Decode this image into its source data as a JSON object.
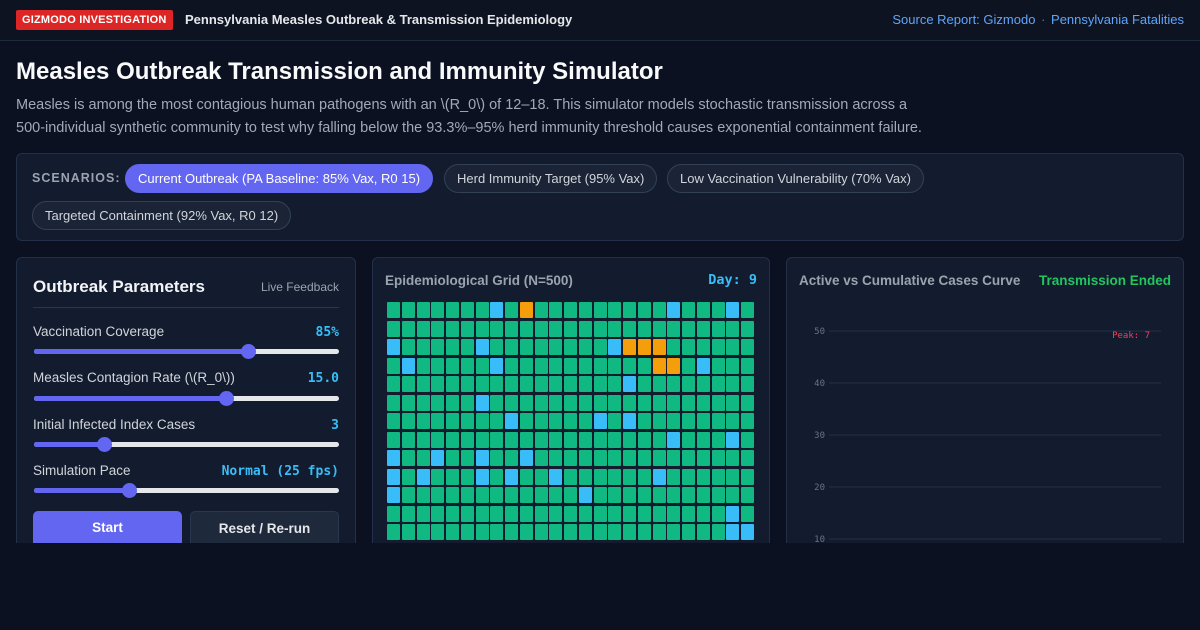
{
  "topbar": {
    "badge": "GIZMODO INVESTIGATION",
    "title": "Pennsylvania Measles Outbreak & Transmission Epidemiology",
    "link_source": "Source Report: Gizmodo",
    "link_sep": "·",
    "link_fatalities": "Pennsylvania Fatalities"
  },
  "page": {
    "title": "Measles Outbreak Transmission and Immunity Simulator",
    "description": "Measles is among the most contagious human pathogens with an \\(R_0\\) of 12–18. This simulator models stochastic transmission across a 500-individual synthetic community to test why falling below the 93.3%–95% herd immunity threshold causes exponential containment failure."
  },
  "scenarios": {
    "label": "SCENARIOS:",
    "items": [
      {
        "label": "Current Outbreak (PA Baseline: 85% Vax, R0 15)",
        "active": true
      },
      {
        "label": "Herd Immunity Target (95% Vax)",
        "active": false
      },
      {
        "label": "Low Vaccination Vulnerability (70% Vax)",
        "active": false
      },
      {
        "label": "Targeted Containment (92% Vax, R0 12)",
        "active": false
      }
    ]
  },
  "params": {
    "title": "Outbreak Parameters",
    "live": "Live Feedback",
    "controls": [
      {
        "label": "Vaccination Coverage",
        "value": "85%",
        "fraction": 0.7
      },
      {
        "label": "Measles Contagion Rate (\\(R_0\\))",
        "value": "15.0",
        "fraction": 0.63
      },
      {
        "label": "Initial Infected Index Cases",
        "value": "3",
        "fraction": 0.23
      },
      {
        "label": "Simulation Pace",
        "value": "Normal (25 fps)",
        "fraction": 0.31
      }
    ],
    "start_label": "Start",
    "reset_label": "Reset / Re-run"
  },
  "grid_panel": {
    "title": "Epidemiological Grid (N=500)",
    "day": "Day: 9",
    "colors": {
      "immune": "#10b981",
      "susceptible": "#38bdf8",
      "infected": "#f59e0b"
    },
    "susceptible_cells": [
      7,
      19,
      23,
      50,
      56,
      65,
      76,
      82,
      96,
      116,
      131,
      158,
      164,
      166,
      194,
      198,
      200,
      203,
      206,
      209,
      225,
      227,
      231,
      233,
      236,
      243,
      250,
      263,
      298,
      323,
      324,
      341,
      347,
      352,
      357,
      370,
      374,
      382,
      398
    ],
    "infected_cells": [
      9,
      66,
      67,
      68,
      93,
      94,
      375
    ]
  },
  "curve_panel": {
    "title": "Active vs Cumulative Cases Curve",
    "status": "Transmission Ended",
    "peak_label": "Peak: 7",
    "chart_data": {
      "type": "line",
      "title": "Active vs Cumulative Cases Curve",
      "yticks": [
        10,
        20,
        30,
        40,
        50
      ],
      "ylim": [
        0,
        50
      ],
      "grid": true
    },
    "colors": {
      "grid": "#243047",
      "tick": "#6b7280",
      "peak": "#f43f5e"
    }
  }
}
